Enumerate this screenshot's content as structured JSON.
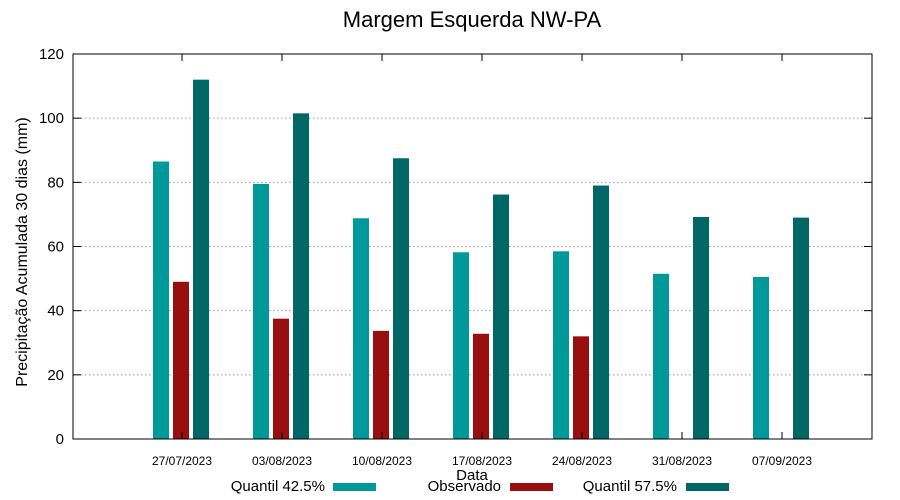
{
  "chart_data": {
    "type": "bar",
    "title": "Margem Esquerda NW-PA",
    "xlabel": "Data",
    "ylabel": "Precipitação Acumulada 30 dias (mm)",
    "ylim": [
      0,
      120
    ],
    "yticks": [
      0,
      20,
      40,
      60,
      80,
      100,
      120
    ],
    "grid": true,
    "legend_position": "bottom",
    "categories": [
      "27/07/2023",
      "03/08/2023",
      "10/08/2023",
      "17/08/2023",
      "24/08/2023",
      "31/08/2023",
      "07/09/2023"
    ],
    "series": [
      {
        "name": "Quantil 42.5%",
        "color": "#009999",
        "values": [
          86.5,
          79.5,
          68.8,
          58.2,
          58.5,
          51.5,
          50.5
        ]
      },
      {
        "name": "Observado",
        "color": "#990f0f",
        "values": [
          49.0,
          37.5,
          33.7,
          32.8,
          32.0,
          null,
          null
        ]
      },
      {
        "name": "Quantil 57.5%",
        "color": "#006666",
        "values": [
          112.0,
          101.5,
          87.5,
          76.2,
          79.0,
          69.2,
          69.0
        ]
      }
    ]
  }
}
